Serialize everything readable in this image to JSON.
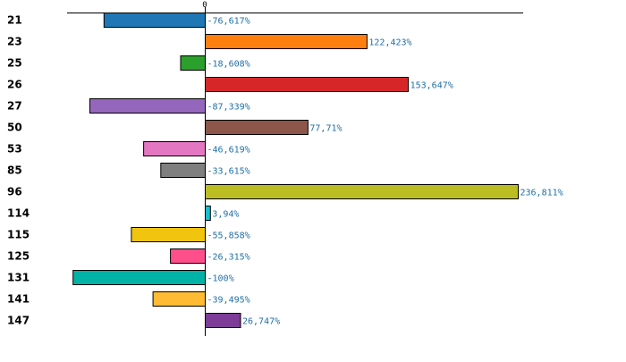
{
  "chart_data": {
    "type": "bar",
    "orientation": "horizontal",
    "title": "",
    "xlabel": "",
    "ylabel": "",
    "zero_tick": "0",
    "xlim": [
      -100,
      236.811
    ],
    "grid": false,
    "highlight_color": "#cc0000",
    "categories": [
      "21",
      "23",
      "25",
      "26",
      "27",
      "50",
      "53",
      "85",
      "96",
      "114",
      "115",
      "125",
      "131",
      "141",
      "147"
    ],
    "values": [
      -76.617,
      122.423,
      -18.608,
      153.647,
      -87.339,
      77.71,
      -46.619,
      -33.615,
      236.811,
      3.94,
      -55.858,
      -26.315,
      -100,
      -39.495,
      26.747
    ],
    "value_labels": [
      "-76,617%",
      "122,423%",
      "-18,608%",
      "153,647%",
      "-87,339%",
      "77,71%",
      "-46,619%",
      "-33,615%",
      "236,811%",
      "3,94%",
      "-55,858%",
      "-26,315%",
      "-100%",
      "-39,495%",
      "26,747%"
    ],
    "highlighted": [
      false,
      false,
      false,
      false,
      false,
      false,
      false,
      false,
      true,
      false,
      false,
      false,
      false,
      false,
      false
    ],
    "colors": [
      "#1f77b4",
      "#ff7f0e",
      "#2ca02c",
      "#d62728",
      "#9467bd",
      "#8c564b",
      "#e377c2",
      "#7f7f7f",
      "#bcbd22",
      "#17becf",
      "#f1c40f",
      "#ff4f8b",
      "#00b3a7",
      "#ffbb33",
      "#7d3c98"
    ]
  }
}
